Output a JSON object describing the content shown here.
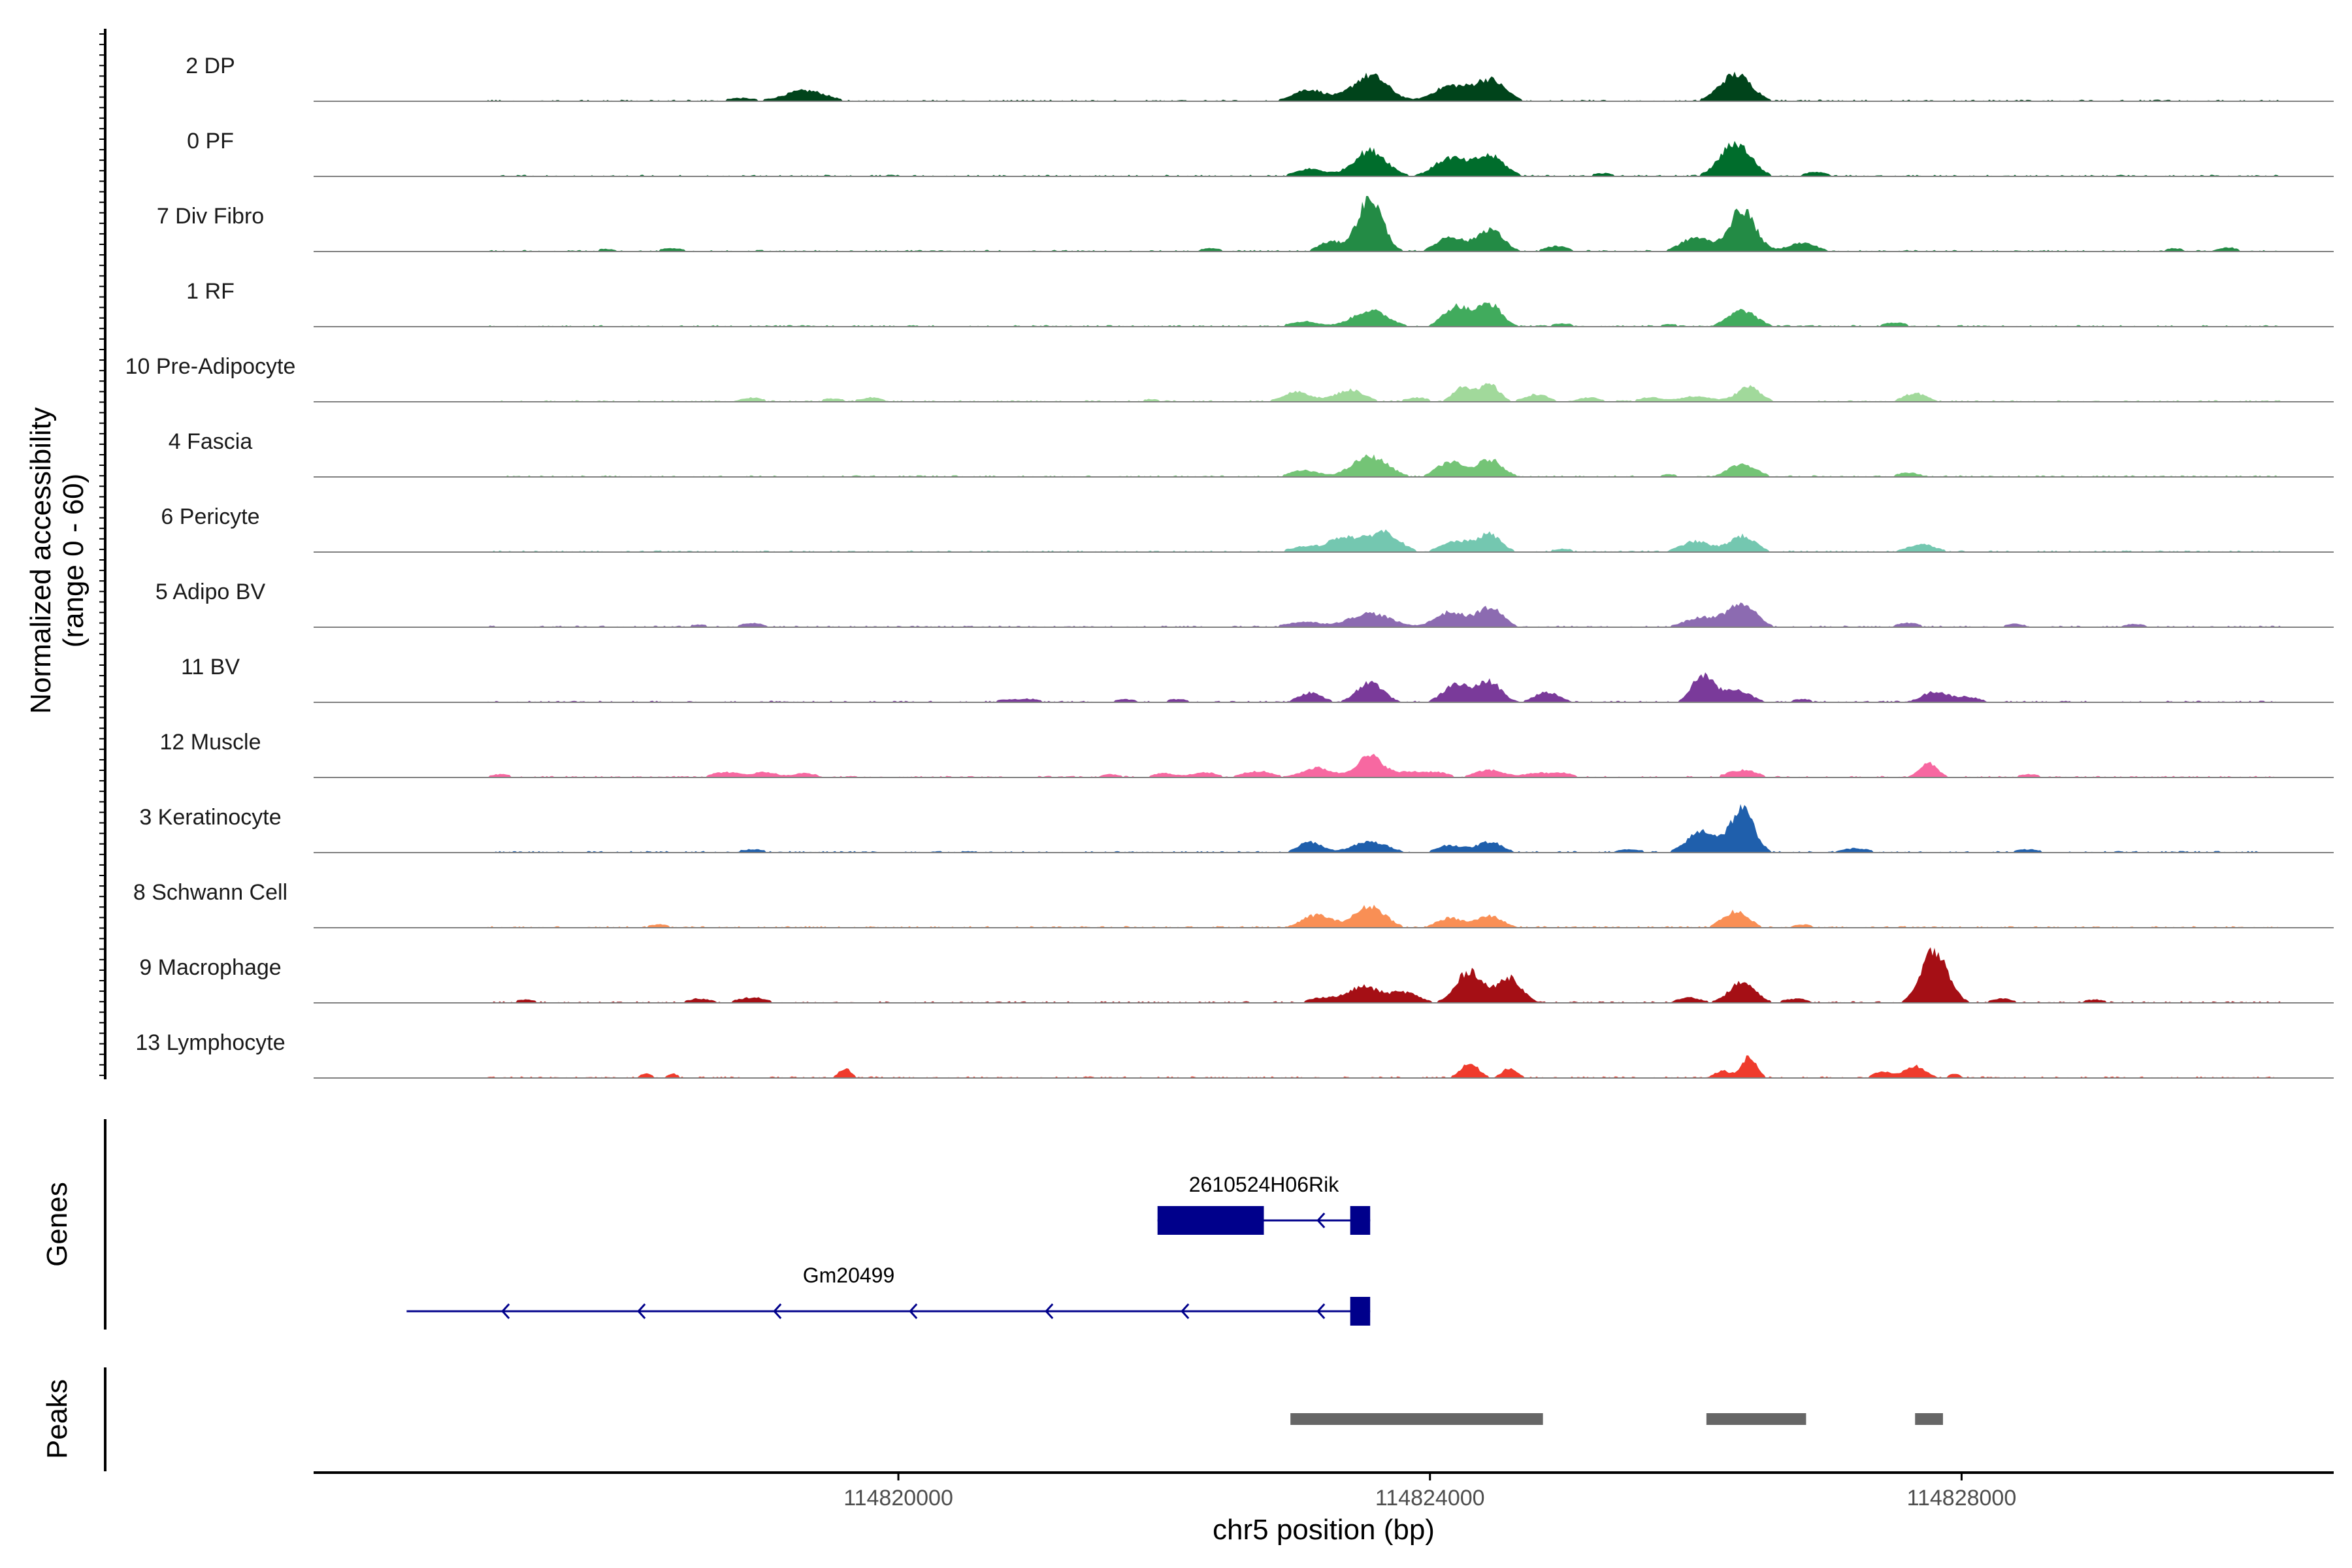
{
  "chart_data": {
    "type": "genome-track",
    "x_axis": {
      "title": "chr5 position (bp)",
      "range_bp": [
        114815600,
        114830800
      ],
      "ticks": [
        114820000,
        114824000,
        114828000
      ],
      "tick_labels": [
        "114820000",
        "114824000",
        "114828000"
      ]
    },
    "y_axis": {
      "title_line1": "Normalized accessibility",
      "title_line2": "(range 0 - 60)",
      "range": [
        0,
        60
      ]
    },
    "tracks": [
      {
        "name": "2 DP",
        "color": "#00441b",
        "peaks": [
          [
            114826300,
            50,
            270
          ],
          [
            114823550,
            48,
            300
          ],
          [
            114824450,
            40,
            260
          ],
          [
            114824150,
            28,
            280
          ],
          [
            114819300,
            20,
            350
          ],
          [
            114823050,
            14,
            250
          ],
          [
            114818800,
            6,
            250
          ],
          [
            114821600,
            4,
            200
          ],
          [
            114823150,
            10,
            250
          ]
        ]
      },
      {
        "name": "0 PF",
        "color": "#006d2c",
        "peaks": [
          [
            114826300,
            62,
            260
          ],
          [
            114823550,
            48,
            280
          ],
          [
            114824450,
            38,
            250
          ],
          [
            114824150,
            34,
            260
          ],
          [
            114823100,
            14,
            250
          ],
          [
            114826900,
            8,
            200
          ],
          [
            114825300,
            6,
            200
          ]
        ]
      },
      {
        "name": "7 Div Fibro",
        "color": "#238b45",
        "peaks": [
          [
            114823550,
            100,
            210
          ],
          [
            114826350,
            78,
            220
          ],
          [
            114824450,
            42,
            220
          ],
          [
            114824150,
            28,
            220
          ],
          [
            114826000,
            26,
            250
          ],
          [
            114823250,
            18,
            200
          ],
          [
            114826800,
            16,
            250
          ],
          [
            114830000,
            8,
            160
          ],
          [
            114829600,
            6,
            160
          ],
          [
            114824950,
            10,
            200
          ],
          [
            114822350,
            6,
            200
          ],
          [
            114818300,
            6,
            250
          ],
          [
            114817800,
            5,
            200
          ]
        ]
      },
      {
        "name": "1 RF",
        "color": "#41ab5d",
        "peaks": [
          [
            114824450,
            42,
            200
          ],
          [
            114824200,
            38,
            220
          ],
          [
            114823550,
            30,
            300
          ],
          [
            114826350,
            30,
            240
          ],
          [
            114823050,
            10,
            250
          ],
          [
            114827500,
            8,
            200
          ],
          [
            114825000,
            6,
            200
          ],
          [
            114825800,
            5,
            200
          ]
        ]
      },
      {
        "name": "10 Pre-Adipocyte",
        "color": "#a1d99b",
        "peaks": [
          [
            114824450,
            32,
            160
          ],
          [
            114824250,
            30,
            160
          ],
          [
            114826400,
            28,
            200
          ],
          [
            114823400,
            22,
            250
          ],
          [
            114823000,
            18,
            250
          ],
          [
            114824800,
            14,
            200
          ],
          [
            114827650,
            16,
            200
          ],
          [
            114826000,
            10,
            300
          ],
          [
            114825200,
            8,
            200
          ],
          [
            114819800,
            8,
            200
          ],
          [
            114818900,
            8,
            200
          ],
          [
            114819500,
            6,
            200
          ],
          [
            114821900,
            5,
            200
          ],
          [
            114825650,
            8,
            200
          ],
          [
            114823900,
            8,
            200
          ]
        ]
      },
      {
        "name": "4 Fascia",
        "color": "#74c476",
        "peaks": [
          [
            114823550,
            38,
            300
          ],
          [
            114824450,
            32,
            220
          ],
          [
            114824150,
            28,
            220
          ],
          [
            114826350,
            24,
            240
          ],
          [
            114823050,
            12,
            250
          ],
          [
            114827600,
            8,
            200
          ],
          [
            114825800,
            5,
            200
          ]
        ]
      },
      {
        "name": "6 Pericyte",
        "color": "#74c7b0",
        "peaks": [
          [
            114823650,
            38,
            260
          ],
          [
            114823350,
            28,
            250
          ],
          [
            114824450,
            32,
            200
          ],
          [
            114824200,
            20,
            250
          ],
          [
            114826350,
            30,
            220
          ],
          [
            114826000,
            20,
            250
          ],
          [
            114827700,
            14,
            250
          ],
          [
            114823050,
            10,
            250
          ],
          [
            114825000,
            6,
            200
          ]
        ]
      },
      {
        "name": "5 Adipo BV",
        "color": "#8c6bb1",
        "peaks": [
          [
            114826350,
            42,
            240
          ],
          [
            114824450,
            36,
            220
          ],
          [
            114824150,
            28,
            250
          ],
          [
            114823550,
            26,
            350
          ],
          [
            114826050,
            18,
            300
          ],
          [
            114823050,
            10,
            300
          ],
          [
            114829300,
            6,
            200
          ],
          [
            114828400,
            6,
            200
          ],
          [
            114818900,
            8,
            200
          ],
          [
            114818500,
            5,
            200
          ],
          [
            114827600,
            8,
            200
          ]
        ]
      },
      {
        "name": "11 BV",
        "color": "#7a3a9a",
        "peaks": [
          [
            114826050,
            50,
            180
          ],
          [
            114823550,
            38,
            220
          ],
          [
            114824450,
            38,
            200
          ],
          [
            114824200,
            34,
            220
          ],
          [
            114826300,
            24,
            240
          ],
          [
            114827800,
            20,
            220
          ],
          [
            114823100,
            18,
            200
          ],
          [
            114824900,
            12,
            200
          ],
          [
            114828050,
            10,
            200
          ],
          [
            114824850,
            8,
            200
          ],
          [
            114821000,
            6,
            200
          ],
          [
            114821700,
            6,
            200
          ],
          [
            114822100,
            6,
            200
          ],
          [
            114820800,
            5,
            200
          ],
          [
            114826800,
            6,
            200
          ]
        ]
      },
      {
        "name": "12 Muscle",
        "color": "#f768a1",
        "peaks": [
          [
            114823550,
            40,
            230
          ],
          [
            114823150,
            18,
            250
          ],
          [
            114827750,
            26,
            160
          ],
          [
            114826350,
            14,
            250
          ],
          [
            114824450,
            14,
            250
          ],
          [
            114823850,
            10,
            200
          ],
          [
            114822700,
            12,
            250
          ],
          [
            114822300,
            10,
            200
          ],
          [
            114816400,
            12,
            200
          ],
          [
            114818700,
            10,
            250
          ],
          [
            114819000,
            10,
            200
          ],
          [
            114819300,
            8,
            200
          ],
          [
            114824050,
            10,
            200
          ],
          [
            114824800,
            8,
            200
          ],
          [
            114825000,
            8,
            200
          ],
          [
            114828500,
            6,
            200
          ],
          [
            114817000,
            6,
            200
          ],
          [
            114821600,
            6,
            200
          ],
          [
            114822000,
            8,
            200
          ]
        ]
      },
      {
        "name": "3 Keratinocyte",
        "color": "#1f5fac",
        "peaks": [
          [
            114826350,
            80,
            200
          ],
          [
            114826050,
            40,
            250
          ],
          [
            114823550,
            20,
            300
          ],
          [
            114823100,
            20,
            200
          ],
          [
            114824450,
            20,
            220
          ],
          [
            114824150,
            14,
            220
          ],
          [
            114827200,
            8,
            250
          ],
          [
            114828500,
            6,
            250
          ],
          [
            114830200,
            4,
            200
          ],
          [
            114818900,
            6,
            250
          ],
          [
            114821600,
            4,
            250
          ],
          [
            114825500,
            6,
            250
          ]
        ]
      },
      {
        "name": "8 Schwann Cell",
        "color": "#f98f55",
        "peaks": [
          [
            114823550,
            40,
            260
          ],
          [
            114823150,
            24,
            250
          ],
          [
            114826300,
            30,
            220
          ],
          [
            114824450,
            22,
            220
          ],
          [
            114824150,
            18,
            220
          ],
          [
            114818200,
            6,
            200
          ],
          [
            114816800,
            4,
            200
          ],
          [
            114819000,
            4,
            200
          ],
          [
            114826800,
            6,
            200
          ]
        ]
      },
      {
        "name": "9 Macrophage",
        "color": "#a50f15",
        "peaks": [
          [
            114827800,
            100,
            220
          ],
          [
            114824300,
            60,
            220
          ],
          [
            114824600,
            48,
            200
          ],
          [
            114826350,
            38,
            220
          ],
          [
            114823500,
            30,
            250
          ],
          [
            114823800,
            20,
            250
          ],
          [
            114825950,
            10,
            200
          ],
          [
            114823200,
            10,
            250
          ],
          [
            114826750,
            8,
            200
          ],
          [
            114818900,
            10,
            250
          ],
          [
            114828300,
            8,
            200
          ],
          [
            114829000,
            6,
            200
          ],
          [
            114816400,
            6,
            200
          ],
          [
            114817200,
            6,
            200
          ],
          [
            114818500,
            8,
            200
          ]
        ]
      },
      {
        "name": "13 Lymphocyte",
        "color": "#ef3b2c",
        "peaks": [
          [
            114826400,
            40,
            130
          ],
          [
            114824300,
            26,
            160
          ],
          [
            114824600,
            18,
            130
          ],
          [
            114827650,
            22,
            180
          ],
          [
            114827400,
            12,
            150
          ],
          [
            114819600,
            18,
            110
          ],
          [
            114818100,
            8,
            100
          ],
          [
            114818300,
            8,
            100
          ],
          [
            114827950,
            8,
            100
          ],
          [
            114826200,
            14,
            130
          ]
        ]
      }
    ],
    "genes": [
      {
        "name": "2610524H06Rik",
        "strand": "-",
        "tx_start": 114821950,
        "tx_end": 114823550,
        "exons": [
          [
            114821950,
            114822750
          ],
          [
            114823400,
            114823550
          ]
        ]
      },
      {
        "name": "Gm20499",
        "strand": "-",
        "tx_start": 114816300,
        "tx_end": 114823550,
        "exons": [
          [
            114823400,
            114823550
          ]
        ]
      }
    ],
    "peaks_track": [
      [
        114822950,
        114824850
      ],
      [
        114826080,
        114826830
      ],
      [
        114827650,
        114827860
      ]
    ],
    "panel_labels": {
      "genes": "Genes",
      "peaks": "Peaks"
    },
    "colors": {
      "gene": "#00008b",
      "peak": "#666666",
      "baseline": "#808080",
      "axis": "#000000"
    }
  }
}
